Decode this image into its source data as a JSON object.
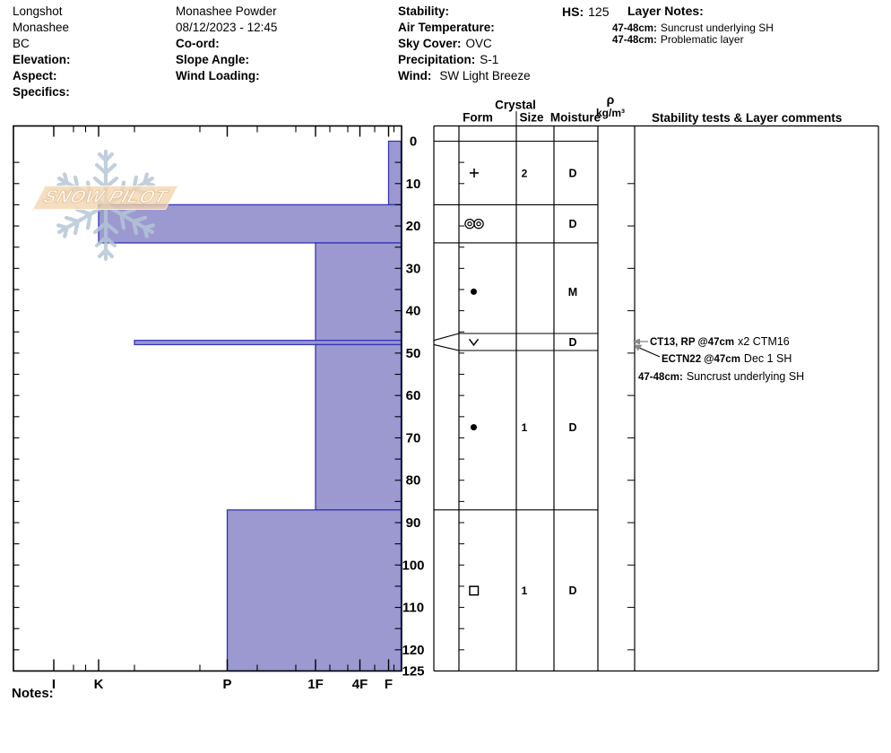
{
  "header": {
    "location": {
      "name": "Longshot",
      "region": "Monashee",
      "state": "BC",
      "elevation_label": "Elevation:",
      "aspect_label": "Aspect:",
      "specifics_label": "Specifics:"
    },
    "pit": {
      "title": "Monashee Powder",
      "datetime": "08/12/2023 - 12:45",
      "coord_label": "Co-ord:",
      "slope_angle_label": "Slope Angle:",
      "wind_loading_label": "Wind Loading:"
    },
    "conditions": {
      "stability_label": "Stability:",
      "air_temperature_label": "Air Temperature:",
      "sky_cover_label": "Sky Cover:",
      "sky_cover": "OVC",
      "precipitation_label": "Precipitation:",
      "precipitation": "S-1",
      "wind_label": "Wind:",
      "wind": "SW Light Breeze"
    },
    "hs_label": "HS:",
    "hs": "125",
    "layer_notes": {
      "title": "Layer Notes:",
      "items": [
        {
          "range": "47-48cm:",
          "note": "Suncrust underlying SH"
        },
        {
          "range": "47-48cm:",
          "note": "Problematic layer"
        }
      ]
    }
  },
  "logo": {
    "text": "SNOW PILOT"
  },
  "table": {
    "crystal_header": "Crystal",
    "form_header": "Form",
    "size_header": "Size",
    "moisture_header": "Moisture",
    "density_symbol": "ρ",
    "density_unit": "kg/m³",
    "comments_header": "Stability tests & Layer comments"
  },
  "notes_label": "Notes:",
  "chart_data": {
    "type": "bar",
    "title": "Snow hardness profile (depth vs hand hardness)",
    "depth_axis": {
      "unit": "cm",
      "min": 0,
      "max": 125,
      "tick_labels": [
        0,
        10,
        20,
        30,
        40,
        50,
        60,
        70,
        80,
        90,
        100,
        110,
        120,
        125
      ]
    },
    "hardness_axis": {
      "tick_labels_left_to_right": [
        "I",
        "K",
        "P",
        "1F",
        "4F",
        "F"
      ]
    },
    "total_depth_cm": 125,
    "layers": [
      {
        "top_cm": 0,
        "bottom_cm": 15,
        "hardness": "F",
        "grain_form": "PP",
        "grain_symbol": "plus",
        "size_mm": "2",
        "moisture": "D"
      },
      {
        "top_cm": 15,
        "bottom_cm": 24,
        "hardness": "K",
        "grain_form": "MFcr",
        "grain_symbol": "double-ring",
        "size_mm": "",
        "moisture": "D"
      },
      {
        "top_cm": 24,
        "bottom_cm": 47,
        "hardness": "1F",
        "grain_form": "RG",
        "grain_symbol": "dot",
        "size_mm": "",
        "moisture": "M"
      },
      {
        "top_cm": 47,
        "bottom_cm": 48,
        "hardness": "K-",
        "grain_form": "SH",
        "grain_symbol": "vee",
        "size_mm": "",
        "moisture": "D"
      },
      {
        "top_cm": 48,
        "bottom_cm": 87,
        "hardness": "1F",
        "grain_form": "RG",
        "grain_symbol": "dot",
        "size_mm": "1",
        "moisture": "D"
      },
      {
        "top_cm": 87,
        "bottom_cm": 125,
        "hardness": "P",
        "grain_form": "FC",
        "grain_symbol": "square",
        "size_mm": "1",
        "moisture": "D"
      }
    ],
    "annotations": [
      {
        "bold": "CT13, RP @47cm",
        "rest": "x2 CTM16",
        "at_cm": 47,
        "arrow": "horizontal"
      },
      {
        "bold": "ECTN22 @47cm",
        "rest": "Dec 1 SH",
        "at_cm": 47,
        "arrow": "diagonal"
      },
      {
        "bold": "47-48cm:",
        "rest": "Suncrust underlying SH",
        "arrow": "none"
      }
    ],
    "colors": {
      "bar_fill": "#9b99d0",
      "bar_stroke": "#3634b3",
      "axis": "#000000",
      "arrow_gray": "#888888"
    }
  }
}
